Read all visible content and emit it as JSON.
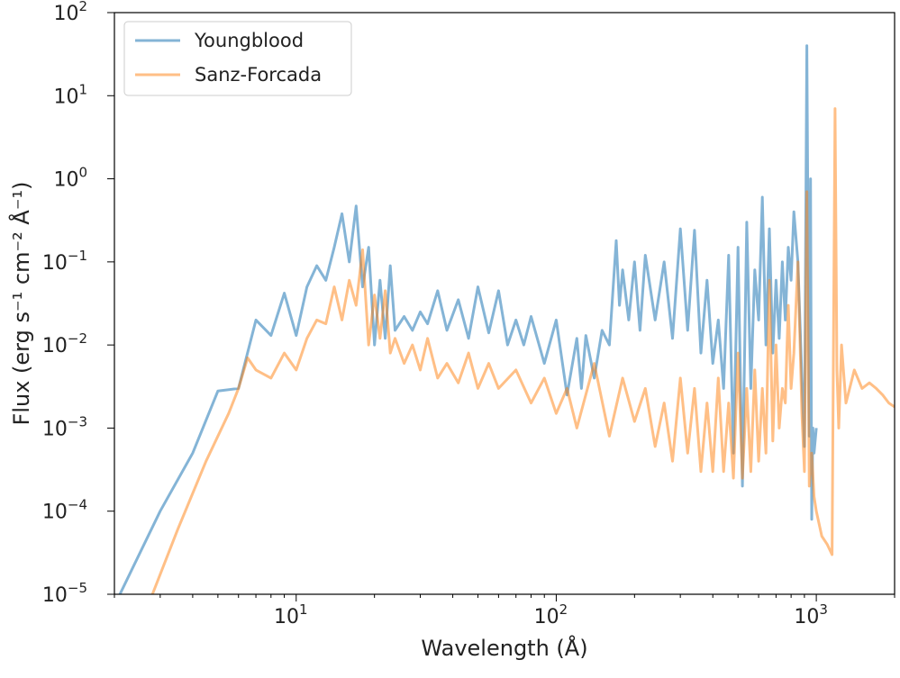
{
  "chart_data": {
    "type": "line",
    "xscale": "log",
    "yscale": "log",
    "xlim": [
      2,
      2000
    ],
    "ylim": [
      1e-05,
      100
    ],
    "xlabel": "Wavelength (Å)",
    "ylabel": "Flux (erg s⁻¹ cm⁻² Å⁻¹)",
    "x_ticks": [
      {
        "value": 10,
        "base": "10",
        "exp": "1"
      },
      {
        "value": 100,
        "base": "10",
        "exp": "2"
      },
      {
        "value": 1000,
        "base": "10",
        "exp": "3"
      }
    ],
    "y_ticks": [
      {
        "value": 1e-05,
        "base": "10",
        "exp": "−5"
      },
      {
        "value": 0.0001,
        "base": "10",
        "exp": "−4"
      },
      {
        "value": 0.001,
        "base": "10",
        "exp": "−3"
      },
      {
        "value": 0.01,
        "base": "10",
        "exp": "−2"
      },
      {
        "value": 0.1,
        "base": "10",
        "exp": "−1"
      },
      {
        "value": 1,
        "base": "10",
        "exp": "0"
      },
      {
        "value": 10,
        "base": "10",
        "exp": "1"
      },
      {
        "value": 100,
        "base": "10",
        "exp": "2"
      }
    ],
    "legend_position": "top-left",
    "series": [
      {
        "name": "Youngblood",
        "color": "#1f77b4",
        "opacity": 0.55,
        "x": [
          2.1,
          3,
          4,
          5,
          6,
          7,
          8,
          9,
          10,
          11,
          12,
          13,
          14,
          15,
          16,
          17,
          18,
          19,
          20,
          21,
          22,
          23,
          24,
          26,
          28,
          30,
          32,
          35,
          38,
          42,
          46,
          50,
          55,
          60,
          65,
          70,
          75,
          80,
          90,
          100,
          110,
          120,
          125,
          130,
          140,
          150,
          160,
          170,
          175,
          180,
          190,
          200,
          210,
          220,
          240,
          260,
          280,
          300,
          320,
          340,
          360,
          380,
          400,
          420,
          440,
          460,
          480,
          500,
          520,
          540,
          560,
          580,
          600,
          620,
          640,
          660,
          680,
          700,
          720,
          740,
          760,
          780,
          800,
          820,
          850,
          880,
          900,
          920,
          940,
          950,
          960,
          970,
          980,
          1000
        ],
        "values": [
          1e-05,
          0.0001,
          0.0005,
          0.0028,
          0.003,
          0.02,
          0.013,
          0.042,
          0.013,
          0.05,
          0.09,
          0.06,
          0.15,
          0.38,
          0.1,
          0.47,
          0.05,
          0.15,
          0.01,
          0.06,
          0.012,
          0.09,
          0.015,
          0.022,
          0.015,
          0.025,
          0.018,
          0.045,
          0.015,
          0.035,
          0.012,
          0.05,
          0.014,
          0.045,
          0.01,
          0.02,
          0.01,
          0.022,
          0.006,
          0.02,
          0.0025,
          0.012,
          0.003,
          0.013,
          0.004,
          0.015,
          0.01,
          0.18,
          0.03,
          0.08,
          0.02,
          0.1,
          0.015,
          0.12,
          0.02,
          0.1,
          0.012,
          0.25,
          0.015,
          0.24,
          0.008,
          0.06,
          0.006,
          0.02,
          0.003,
          0.12,
          0.0005,
          0.15,
          0.0002,
          0.3,
          0.003,
          0.08,
          0.02,
          0.6,
          0.01,
          0.25,
          0.008,
          0.06,
          0.012,
          0.1,
          0.02,
          0.15,
          0.06,
          0.4,
          0.1,
          0.004,
          0.0006,
          40,
          0.0008,
          1,
          8e-05,
          0.001,
          0.0005,
          0.001
        ]
      },
      {
        "name": "Sanz-Forcada",
        "color": "#ff7f0e",
        "opacity": 0.5,
        "x": [
          2.8,
          3.5,
          4.5,
          5.5,
          6,
          6.5,
          7,
          8,
          9,
          10,
          11,
          12,
          13,
          14,
          15,
          16,
          17,
          18,
          19,
          20,
          21,
          22,
          23,
          24,
          26,
          28,
          30,
          32,
          35,
          38,
          42,
          46,
          50,
          55,
          60,
          70,
          80,
          90,
          100,
          110,
          120,
          140,
          160,
          180,
          200,
          220,
          240,
          260,
          280,
          300,
          320,
          340,
          360,
          380,
          400,
          420,
          440,
          460,
          480,
          500,
          520,
          540,
          560,
          580,
          600,
          620,
          640,
          660,
          680,
          700,
          720,
          740,
          760,
          780,
          800,
          820,
          850,
          880,
          900,
          920,
          940,
          960,
          980,
          1000,
          1050,
          1100,
          1150,
          1180,
          1200,
          1220,
          1250,
          1300,
          1400,
          1500,
          1600,
          1700,
          1800,
          1900,
          2000
        ],
        "values": [
          1e-05,
          6e-05,
          0.0004,
          0.0015,
          0.003,
          0.007,
          0.005,
          0.004,
          0.008,
          0.005,
          0.012,
          0.02,
          0.018,
          0.05,
          0.02,
          0.06,
          0.03,
          0.14,
          0.01,
          0.04,
          0.012,
          0.045,
          0.008,
          0.012,
          0.006,
          0.01,
          0.005,
          0.012,
          0.004,
          0.006,
          0.0035,
          0.008,
          0.003,
          0.006,
          0.003,
          0.005,
          0.002,
          0.004,
          0.0015,
          0.003,
          0.001,
          0.006,
          0.0008,
          0.004,
          0.0012,
          0.003,
          0.0006,
          0.002,
          0.0004,
          0.004,
          0.0005,
          0.003,
          0.0003,
          0.002,
          0.0003,
          0.004,
          0.0003,
          0.002,
          0.00025,
          0.008,
          0.00025,
          0.003,
          0.0003,
          0.005,
          0.0004,
          0.003,
          0.0005,
          0.06,
          0.0007,
          0.01,
          0.001,
          0.003,
          0.002,
          0.03,
          0.003,
          0.008,
          0.1,
          0.0015,
          0.0003,
          0.7,
          0.0002,
          0.0005,
          0.00015,
          0.0001,
          5e-05,
          4e-05,
          3e-05,
          7,
          0.005,
          0.001,
          0.01,
          0.002,
          0.005,
          0.003,
          0.0035,
          0.003,
          0.0025,
          0.002,
          0.0018
        ]
      }
    ]
  }
}
